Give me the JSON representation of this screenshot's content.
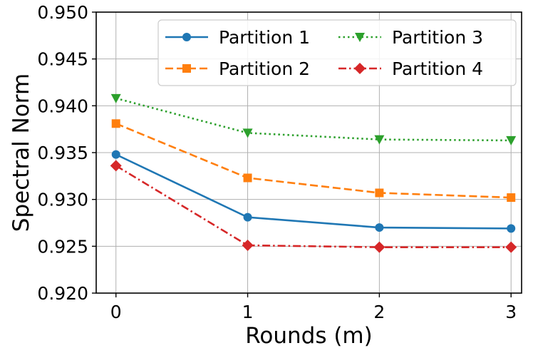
{
  "chart_data": {
    "type": "line",
    "title": "",
    "xlabel": "Rounds (m)",
    "ylabel": "Spectral Norm",
    "x": [
      0,
      1,
      2,
      3
    ],
    "x_ticks": [
      "0",
      "1",
      "2",
      "3"
    ],
    "xlim": [
      -0.15,
      3.08
    ],
    "ylim": [
      0.92,
      0.95
    ],
    "y_ticks": [
      "0.920",
      "0.925",
      "0.930",
      "0.935",
      "0.940",
      "0.945",
      "0.950"
    ],
    "grid": true,
    "legend_position": "top-right",
    "legend_columns": 2,
    "series": [
      {
        "name": "Partition 1",
        "values": [
          0.9348,
          0.9281,
          0.927,
          0.9269
        ],
        "color": "#1f77b4",
        "line_style": "solid",
        "marker": "circle"
      },
      {
        "name": "Partition 2",
        "values": [
          0.9381,
          0.9323,
          0.9307,
          0.9302
        ],
        "color": "#ff7f0e",
        "line_style": "dashed",
        "marker": "square"
      },
      {
        "name": "Partition 3",
        "values": [
          0.9408,
          0.9371,
          0.9364,
          0.9363
        ],
        "color": "#2ca02c",
        "line_style": "dotted",
        "marker": "triangle-down"
      },
      {
        "name": "Partition 4",
        "values": [
          0.9336,
          0.9251,
          0.9249,
          0.9249
        ],
        "color": "#d62728",
        "line_style": "dash-dot",
        "marker": "diamond"
      }
    ]
  }
}
